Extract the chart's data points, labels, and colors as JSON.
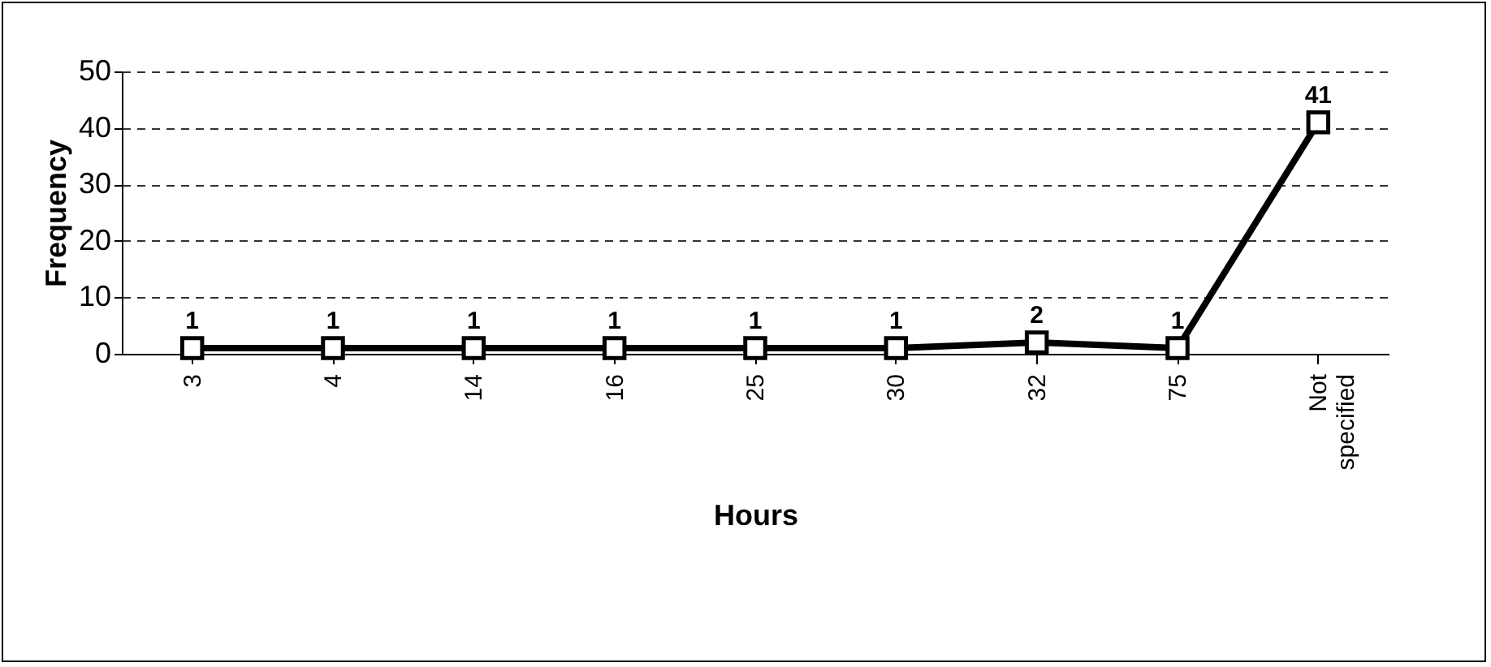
{
  "chart_data": {
    "type": "line",
    "xlabel": "Hours",
    "ylabel": "Frequency",
    "categories": [
      "3",
      "4",
      "14",
      "16",
      "25",
      "30",
      "32",
      "75",
      "Not specified"
    ],
    "series": [
      {
        "color": "#000000",
        "values": [
          1,
          1,
          1,
          1,
          1,
          1,
          2,
          1,
          41
        ]
      }
    ],
    "ylim": [
      0,
      50
    ],
    "yticks": [
      0,
      10,
      20,
      30,
      40,
      50
    ],
    "grid": "y",
    "legend": false,
    "marker": "square",
    "line_style": "solid",
    "data_labels": true
  }
}
